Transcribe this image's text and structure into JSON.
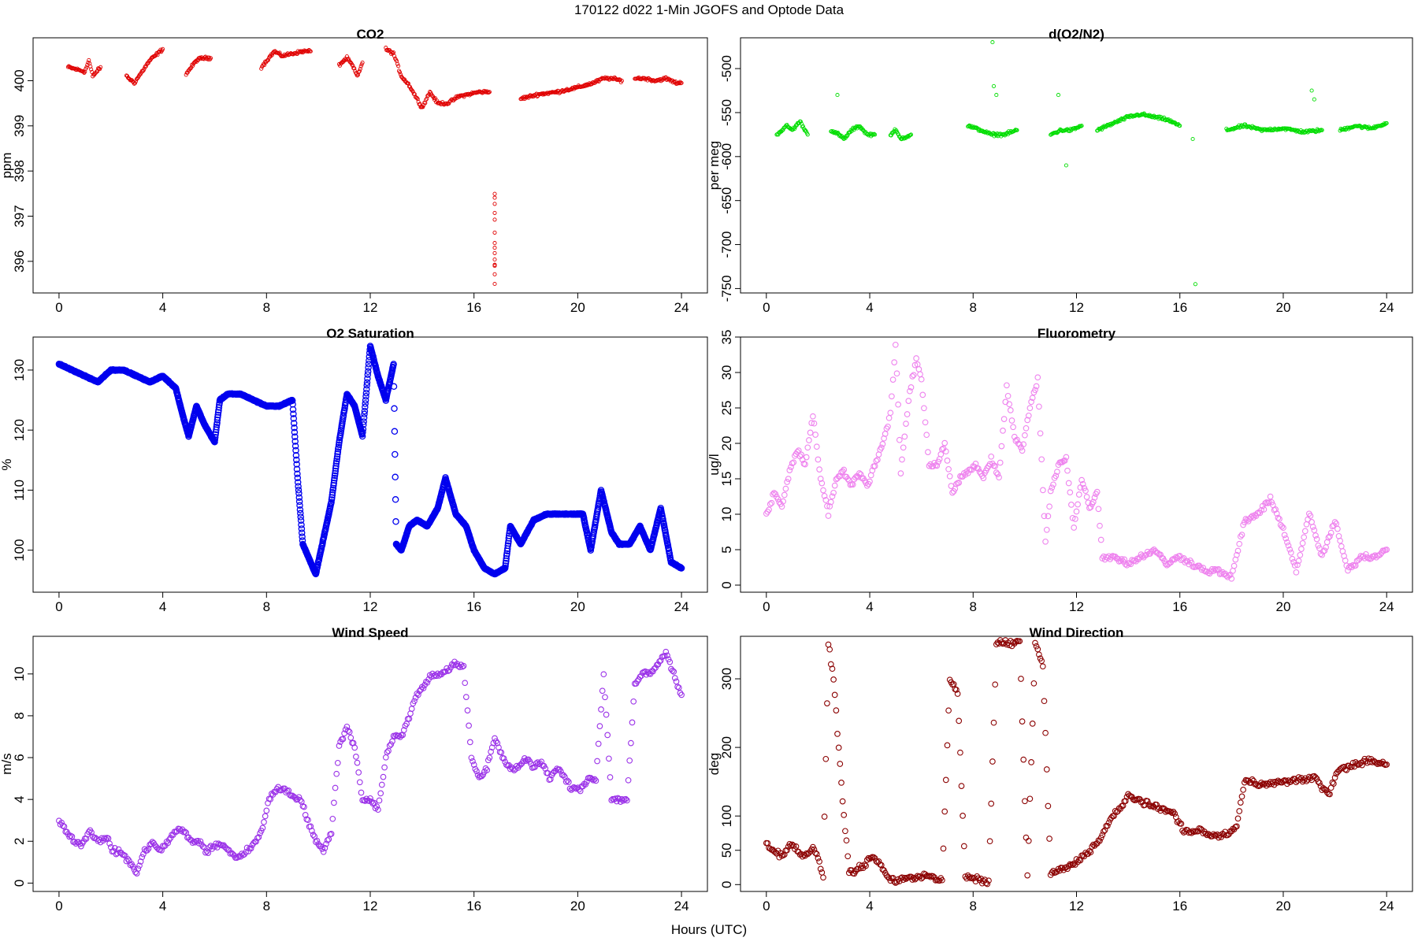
{
  "figure": {
    "title": "170122   d022   1-Min  JGOFS and Optode Data",
    "xlabel": "Hours (UTC)"
  },
  "chart_data": [
    {
      "type": "scatter",
      "title": "CO2",
      "ylabel": "ppm",
      "color": "#e00000",
      "marker_size": "small",
      "xlim": [
        -1,
        25
      ],
      "ylim": [
        395.3,
        400.95
      ],
      "xticks": [
        0,
        4,
        8,
        12,
        16,
        20,
        24
      ],
      "yticks": [
        396,
        397,
        398,
        399,
        400
      ],
      "segments": [
        {
          "x": [
            0.35,
            1.0,
            1.15,
            1.3,
            1.6
          ],
          "y": [
            400.3,
            400.2,
            400.45,
            400.1,
            400.3
          ]
        },
        {
          "x": [
            2.6,
            2.9,
            3.2,
            3.5,
            3.8,
            4.0
          ],
          "y": [
            400.1,
            399.95,
            400.2,
            400.45,
            400.6,
            400.7
          ]
        },
        {
          "x": [
            4.9,
            5.1,
            5.3,
            5.5,
            5.85
          ],
          "y": [
            400.15,
            400.3,
            400.45,
            400.5,
            400.5
          ]
        },
        {
          "x": [
            7.8,
            8.3,
            8.6,
            9.0,
            9.4,
            9.7
          ],
          "y": [
            400.3,
            400.65,
            400.55,
            400.6,
            400.65,
            400.65
          ]
        },
        {
          "x": [
            10.8,
            11.1,
            11.3,
            11.5,
            11.7
          ],
          "y": [
            400.35,
            400.5,
            400.35,
            400.1,
            400.4
          ]
        },
        {
          "x": [
            12.6,
            12.9,
            13.2,
            13.5,
            13.8,
            14.0,
            14.3,
            14.6,
            15.0,
            15.4,
            15.8,
            16.2,
            16.6
          ],
          "y": [
            400.7,
            400.6,
            400.1,
            399.9,
            399.6,
            399.4,
            399.75,
            399.5,
            399.5,
            399.65,
            399.7,
            399.75,
            399.75
          ]
        },
        {
          "x": [
            16.8,
            16.8,
            16.8,
            16.8,
            16.8,
            16.8,
            16.8,
            16.8
          ],
          "y": [
            397.5,
            397.3,
            396.9,
            396.4,
            396.2,
            395.9,
            395.9,
            395.5
          ]
        },
        {
          "x": [
            17.8,
            18.5,
            19.2,
            20.0,
            20.6,
            21.0,
            21.3,
            21.7
          ],
          "y": [
            399.6,
            399.7,
            399.75,
            399.85,
            399.95,
            400.05,
            400.05,
            400.0
          ]
        },
        {
          "x": [
            22.2,
            22.6,
            23.0,
            23.4,
            23.8,
            24.0
          ],
          "y": [
            400.05,
            400.05,
            400.0,
            400.05,
            399.95,
            399.95
          ]
        }
      ]
    },
    {
      "type": "scatter",
      "title": "d(O2/N2)",
      "ylabel": "per meg",
      "color": "#00dd00",
      "marker_size": "small",
      "xlim": [
        -1,
        25
      ],
      "ylim": [
        -755,
        -465
      ],
      "xticks": [
        0,
        4,
        8,
        12,
        16,
        20,
        24
      ],
      "yticks": [
        -750,
        -700,
        -650,
        -600,
        -550,
        -500
      ],
      "segments": [
        {
          "x": [
            0.4,
            0.8,
            1.0,
            1.3,
            1.6
          ],
          "y": [
            -575,
            -565,
            -570,
            -560,
            -575
          ]
        },
        {
          "x": [
            2.5,
            2.8,
            3.0,
            3.3,
            3.6,
            3.9,
            4.2
          ],
          "y": [
            -570,
            -575,
            -580,
            -570,
            -565,
            -575,
            -575
          ]
        },
        {
          "x": [
            4.8,
            5.0,
            5.2,
            5.6
          ],
          "y": [
            -575,
            -570,
            -580,
            -575
          ]
        },
        {
          "x": [
            7.8,
            8.3,
            8.7,
            9.2,
            9.7
          ],
          "y": [
            -565,
            -570,
            -575,
            -575,
            -570
          ]
        },
        {
          "x": [
            11.0,
            11.4,
            11.8,
            12.2
          ],
          "y": [
            -575,
            -570,
            -570,
            -565
          ]
        },
        {
          "x": [
            12.8,
            13.2,
            13.6,
            14.0,
            14.5,
            15.0,
            15.5,
            16.0
          ],
          "y": [
            -570,
            -565,
            -560,
            -555,
            -552,
            -555,
            -558,
            -565
          ]
        },
        {
          "x": [
            17.8,
            18.5,
            19.2,
            20.0,
            20.8,
            21.5
          ],
          "y": [
            -570,
            -565,
            -570,
            -568,
            -572,
            -570
          ]
        },
        {
          "x": [
            22.2,
            22.8,
            23.4,
            24.0
          ],
          "y": [
            -570,
            -565,
            -568,
            -562
          ]
        }
      ],
      "outliers": {
        "x": [
          8.75,
          8.8,
          8.9,
          2.75,
          11.6,
          11.3,
          16.6,
          16.5,
          21.1,
          21.2
        ],
        "y": [
          -470,
          -520,
          -530,
          -530,
          -610,
          -530,
          -745,
          -580,
          -525,
          -535
        ]
      }
    },
    {
      "type": "scatter",
      "title": "O2 Saturation",
      "ylabel": "%",
      "color": "#0000ee",
      "marker_size": "dense",
      "xlim": [
        -1,
        25
      ],
      "ylim": [
        93,
        135.5
      ],
      "xticks": [
        0,
        4,
        8,
        12,
        16,
        20,
        24
      ],
      "yticks": [
        100,
        110,
        120,
        130
      ],
      "series": {
        "x": [
          0,
          0.5,
          1,
          1.5,
          2,
          2.5,
          3,
          3.5,
          4,
          4.5,
          4.8,
          5,
          5.3,
          5.6,
          6,
          6.2,
          6.5,
          7,
          7.5,
          8,
          8.5,
          9,
          9.2,
          9.4,
          9.6,
          9.9,
          10.2,
          10.5,
          10.8,
          11.1,
          11.4,
          11.7,
          12,
          12.3,
          12.6,
          12.9,
          13.0,
          13.2,
          13.5,
          13.8,
          14.2,
          14.6,
          14.9,
          15.3,
          15.7,
          16,
          16.4,
          16.8,
          17.2,
          17.4,
          17.8,
          18.3,
          18.8,
          19.3,
          19.8,
          20.2,
          20.5,
          20.9,
          21.3,
          21.6,
          22,
          22.4,
          22.8,
          23.2,
          23.6,
          24
        ],
        "y": [
          131,
          130,
          129,
          128,
          130,
          130,
          129,
          128,
          129,
          127,
          122,
          119,
          124,
          121,
          118,
          125,
          126,
          126,
          125,
          124,
          124,
          125,
          112,
          101,
          99,
          96,
          102,
          108,
          118,
          126,
          124,
          119,
          134,
          129,
          125,
          131,
          101,
          100,
          104,
          105,
          104,
          107,
          112,
          106,
          104,
          100,
          97,
          96,
          97,
          104,
          101,
          105,
          106,
          106,
          106,
          106,
          100,
          110,
          103,
          101,
          101,
          104,
          100,
          107,
          98,
          97
        ]
      }
    },
    {
      "type": "scatter",
      "title": "Fluorometry",
      "ylabel": "ug/l",
      "color": "#ee82ee",
      "marker_size": "open",
      "xlim": [
        -1,
        25
      ],
      "ylim": [
        -1,
        35
      ],
      "xticks": [
        0,
        4,
        8,
        12,
        16,
        20,
        24
      ],
      "yticks": [
        0,
        5,
        10,
        15,
        20,
        25,
        30,
        35
      ],
      "series": {
        "x": [
          0,
          0.3,
          0.6,
          0.9,
          1.2,
          1.5,
          1.8,
          2.1,
          2.4,
          2.7,
          3,
          3.3,
          3.6,
          3.9,
          4.2,
          4.5,
          4.8,
          5.0,
          5.2,
          5.5,
          5.8,
          6.0,
          6.3,
          6.6,
          6.9,
          7.2,
          7.5,
          7.8,
          8.1,
          8.4,
          8.7,
          9.0,
          9.3,
          9.6,
          9.9,
          10.2,
          10.5,
          10.8,
          11.0,
          11.3,
          11.6,
          11.9,
          12.2,
          12.5,
          12.8,
          13.0,
          13.5,
          14,
          14.5,
          15,
          15.5,
          16,
          16.5,
          17,
          17.5,
          18,
          18.5,
          19,
          19.5,
          20,
          20.5,
          21,
          21.5,
          22,
          22.5,
          23,
          23.5,
          24
        ],
        "y": [
          10,
          13,
          11,
          16,
          19,
          17,
          24,
          15,
          10,
          15,
          16,
          14,
          16,
          14,
          17,
          20,
          24,
          34,
          16,
          26,
          32,
          29,
          17,
          17,
          20,
          13,
          15,
          16,
          17,
          15,
          18,
          15,
          28,
          21,
          19,
          25,
          29,
          6,
          13,
          17,
          18,
          8,
          15,
          11,
          13,
          4,
          4,
          3,
          4,
          5,
          3,
          4,
          3,
          2,
          2,
          1,
          9,
          10,
          12,
          8,
          2,
          10,
          4,
          9,
          2,
          4,
          4,
          5
        ]
      }
    },
    {
      "type": "scatter",
      "title": "Wind Speed",
      "ylabel": "m/s",
      "color": "#9a30e8",
      "marker_size": "open",
      "xlim": [
        -1,
        25
      ],
      "ylim": [
        -0.4,
        11.8
      ],
      "xticks": [
        0,
        4,
        8,
        12,
        16,
        20,
        24
      ],
      "yticks": [
        0,
        2,
        4,
        6,
        8,
        10
      ],
      "series": {
        "x": [
          0,
          0.3,
          0.6,
          0.9,
          1.2,
          1.5,
          1.8,
          2.1,
          2.4,
          2.7,
          3.0,
          3.3,
          3.6,
          3.9,
          4.2,
          4.5,
          4.8,
          5.1,
          5.4,
          5.7,
          6.0,
          6.3,
          6.6,
          6.9,
          7.2,
          7.5,
          7.8,
          8.1,
          8.4,
          8.7,
          9.0,
          9.3,
          9.6,
          9.9,
          10.2,
          10.5,
          10.8,
          11.1,
          11.4,
          11.7,
          12.0,
          12.3,
          12.6,
          12.9,
          13.2,
          13.5,
          13.8,
          14.1,
          14.4,
          14.7,
          15.0,
          15.3,
          15.6,
          15.9,
          16.2,
          16.5,
          16.8,
          17.1,
          17.4,
          17.7,
          18.0,
          18.3,
          18.6,
          18.9,
          19.2,
          19.5,
          19.8,
          20.1,
          20.4,
          20.7,
          21.0,
          21.3,
          21.6,
          21.9,
          22.2,
          22.5,
          22.8,
          23.1,
          23.4,
          23.7,
          24.0
        ],
        "y": [
          3,
          2.5,
          2,
          1.8,
          2.5,
          2,
          2.2,
          1.5,
          1.5,
          1,
          0.5,
          1.5,
          2,
          1.5,
          2,
          2.5,
          2.5,
          2,
          2,
          1.5,
          1.8,
          1.8,
          1.5,
          1.2,
          1.5,
          1.8,
          2.5,
          4,
          4.5,
          4.5,
          4.2,
          4,
          3,
          2,
          1.5,
          2.5,
          6.5,
          7.5,
          6.5,
          4,
          4,
          3.5,
          6,
          7,
          7,
          8,
          9,
          9.5,
          10,
          10,
          10.2,
          10.5,
          10.3,
          6,
          5,
          5.5,
          7,
          6,
          5.5,
          5.5,
          6,
          5.5,
          5.8,
          5,
          5.5,
          5,
          4.5,
          4.5,
          5,
          5,
          10,
          4,
          4,
          4,
          9.5,
          10,
          10,
          10.5,
          11,
          10,
          9
        ]
      }
    },
    {
      "type": "scatter",
      "title": "Wind Direction",
      "ylabel": "deg",
      "color": "#8b0000",
      "marker_size": "open",
      "xlim": [
        -1,
        25
      ],
      "ylim": [
        -10,
        362
      ],
      "xticks": [
        0,
        4,
        8,
        12,
        16,
        20,
        24
      ],
      "yticks": [
        0,
        50,
        100,
        200,
        300
      ],
      "series": {
        "x": [
          0,
          0.3,
          0.6,
          0.9,
          1.2,
          1.5,
          1.8,
          2.0,
          2.2,
          2.4,
          2.6,
          2.8,
          3.0,
          3.2,
          3.5,
          3.8,
          4.1,
          4.4,
          4.7,
          5.0,
          5.3,
          5.6,
          5.9,
          6.2,
          6.5,
          6.8,
          7.1,
          7.4,
          7.7,
          8.0,
          8.3,
          8.6,
          8.9,
          9.2,
          9.5,
          9.8,
          10.1,
          10.4,
          10.7,
          11.0,
          11.3,
          11.6,
          11.9,
          12.2,
          12.5,
          12.8,
          13.1,
          13.4,
          13.7,
          14.0,
          14.3,
          14.6,
          14.9,
          15.2,
          15.5,
          15.8,
          16.1,
          16.4,
          16.7,
          17.0,
          17.3,
          17.6,
          17.9,
          18.2,
          18.5,
          18.8,
          19.1,
          19.4,
          19.7,
          20.0,
          20.3,
          20.6,
          20.9,
          21.2,
          21.5,
          21.8,
          22.1,
          22.4,
          22.7,
          23.0,
          23.3,
          23.6,
          23.9,
          24.0
        ],
        "y": [
          60,
          50,
          40,
          60,
          50,
          40,
          55,
          40,
          10,
          350,
          300,
          200,
          100,
          20,
          20,
          30,
          40,
          30,
          10,
          5,
          10,
          8,
          12,
          15,
          10,
          5,
          300,
          280,
          10,
          10,
          5,
          5,
          350,
          355,
          350,
          355,
          10,
          350,
          320,
          15,
          20,
          25,
          30,
          40,
          50,
          60,
          80,
          100,
          110,
          130,
          125,
          120,
          115,
          110,
          108,
          105,
          80,
          75,
          80,
          75,
          70,
          72,
          75,
          85,
          150,
          150,
          145,
          150,
          148,
          150,
          150,
          155,
          150,
          160,
          140,
          135,
          165,
          170,
          175,
          178,
          180,
          178,
          175,
          175
        ]
      }
    }
  ]
}
